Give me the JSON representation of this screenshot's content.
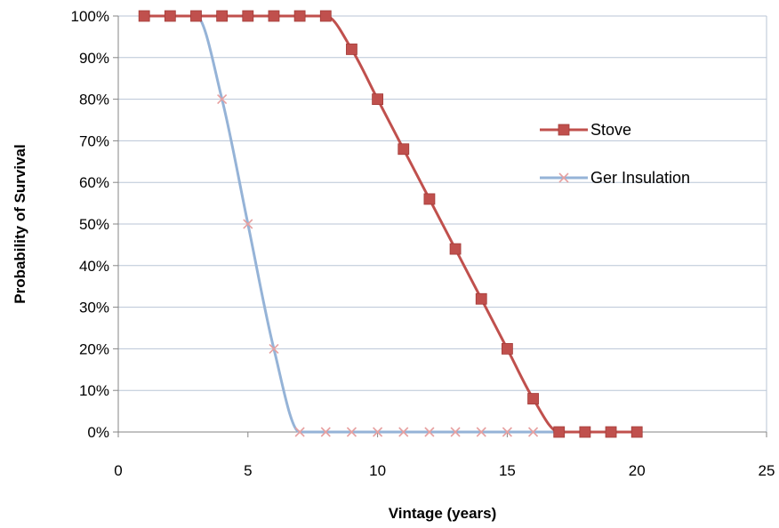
{
  "chart_data": {
    "type": "line",
    "xlabel": "Vintage (years)",
    "ylabel": "Probability of Survival",
    "xlim": [
      0,
      25
    ],
    "ylim": [
      0,
      100
    ],
    "x_ticks": [
      0,
      5,
      10,
      15,
      20,
      25
    ],
    "y_ticks": [
      0,
      10,
      20,
      30,
      40,
      50,
      60,
      70,
      80,
      90,
      100
    ],
    "y_tick_format": "percent",
    "grid": "horizontal",
    "legend_position": "right",
    "series": [
      {
        "name": "Stove",
        "color": "#c0504d",
        "marker": "square",
        "x": [
          1,
          2,
          3,
          4,
          5,
          6,
          7,
          8,
          9,
          10,
          11,
          12,
          13,
          14,
          15,
          16,
          17,
          18,
          19,
          20
        ],
        "y": [
          100,
          100,
          100,
          100,
          100,
          100,
          100,
          100,
          92,
          80,
          68,
          56,
          44,
          32,
          20,
          8,
          0,
          0,
          0,
          0
        ]
      },
      {
        "name": "Ger Insulation",
        "color": "#95b3d7",
        "marker_color": "#e6a0a0",
        "marker": "x",
        "x": [
          1,
          2,
          3,
          4,
          5,
          6,
          7,
          8,
          9,
          10,
          11,
          12,
          13,
          14,
          15,
          16,
          17,
          18,
          19,
          20
        ],
        "y": [
          100,
          100,
          100,
          80,
          50,
          20,
          0,
          0,
          0,
          0,
          0,
          0,
          0,
          0,
          0,
          0,
          0,
          0,
          0,
          0
        ]
      }
    ]
  }
}
